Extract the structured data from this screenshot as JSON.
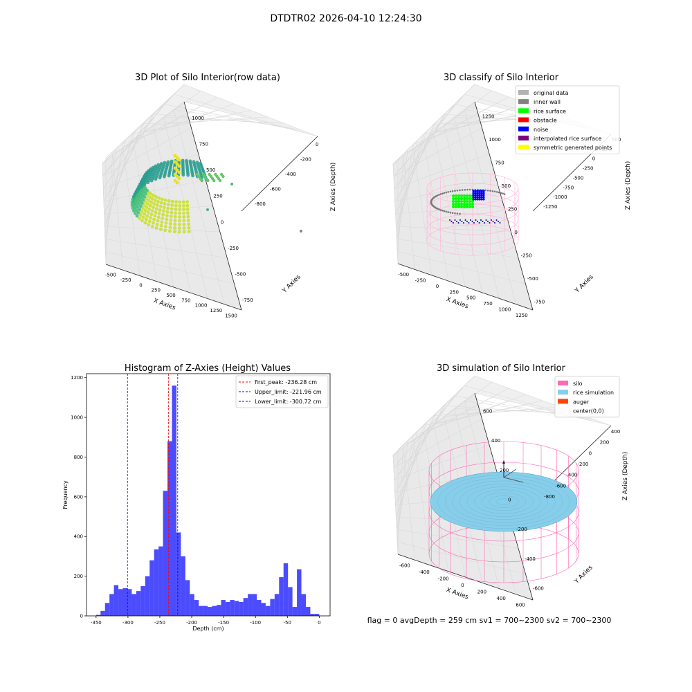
{
  "figure": {
    "suptitle": "DTDTR02 2026-04-10 12:24:30",
    "status_text": "flag = 0     avgDepth = 259 cm  sv1 = 700~2300  sv2 = 700~2300"
  },
  "panels": {
    "raw3d": {
      "title": "3D Plot of Silo Interior(row data)",
      "xlabel": "X Axies",
      "ylabel": "Y Axies",
      "zlabel": "Z Axies (Depth)",
      "xticks": [
        "-500",
        "-250",
        "0",
        "250",
        "500",
        "750",
        "1000",
        "1250",
        "1500"
      ],
      "yticks": [
        "-750",
        "-500",
        "-250",
        "0",
        "250",
        "500",
        "750",
        "1000"
      ],
      "zticks": [
        "0",
        "-200",
        "-400",
        "-600",
        "-800"
      ]
    },
    "classify3d": {
      "title": "3D classify of Silo Interior",
      "xlabel": "X Axies",
      "ylabel": "Y Axies",
      "zlabel": "Z Axies (Depth)",
      "xticks": [
        "-500",
        "-250",
        "0",
        "250",
        "500",
        "750",
        "1000",
        "1250"
      ],
      "yticks": [
        "-750",
        "-500",
        "-250",
        "0",
        "250",
        "500",
        "750",
        "1000",
        "1250"
      ],
      "zticks": [
        "500",
        "250",
        "0",
        "-250",
        "-500",
        "-750",
        "-1000",
        "-1250"
      ],
      "legend": [
        {
          "label": "original data",
          "color": "#b3b3b3"
        },
        {
          "label": "inner wall",
          "color": "#808080"
        },
        {
          "label": "rice surface",
          "color": "#00ff00"
        },
        {
          "label": "obstacle",
          "color": "#ff0000"
        },
        {
          "label": "noise",
          "color": "#0000ff"
        },
        {
          "label": "interpolated rice surface",
          "color": "#800080"
        },
        {
          "label": "symmetric generated points",
          "color": "#ffff00"
        }
      ]
    },
    "simulation3d": {
      "title": "3D simulation of Silo Interior",
      "xlabel": "X Axies",
      "ylabel": "Y Axies",
      "zlabel": "Z Axies (Depth)",
      "xticks": [
        "-600",
        "-400",
        "-200",
        "0",
        "200",
        "400",
        "600"
      ],
      "yticks": [
        "-600",
        "-400",
        "-200",
        "0",
        "200",
        "400",
        "600"
      ],
      "zticks": [
        "400",
        "200",
        "0",
        "-200",
        "-400",
        "-600",
        "-800"
      ],
      "legend": [
        {
          "label": "silo",
          "color": "#ff69b4"
        },
        {
          "label": "rice simulation",
          "color": "#87ceeb"
        },
        {
          "label": "auger",
          "color": "#ff4500"
        },
        {
          "label": "center(0,0)",
          "color": ""
        }
      ]
    }
  },
  "chart_data": {
    "type": "bar",
    "title": "Histogram of Z-Axies (Height) Values",
    "xlabel": "Depth (cm)",
    "ylabel": "Frequency",
    "xlim": [
      -365,
      17
    ],
    "ylim": [
      0,
      1220
    ],
    "xticks": [
      -350,
      -300,
      -250,
      -200,
      -150,
      -100,
      -50,
      0
    ],
    "yticks": [
      0,
      200,
      400,
      600,
      800,
      1000,
      1200
    ],
    "bar_color": "#0000ff",
    "bins_start": -350,
    "bin_width": 7,
    "values": [
      5,
      25,
      65,
      110,
      155,
      135,
      140,
      135,
      110,
      125,
      150,
      200,
      280,
      335,
      350,
      630,
      880,
      1160,
      420,
      300,
      180,
      110,
      80,
      50,
      50,
      45,
      50,
      55,
      80,
      70,
      80,
      75,
      70,
      90,
      110,
      110,
      80,
      65,
      50,
      85,
      110,
      195,
      265,
      145,
      45,
      235,
      110,
      45,
      10,
      10
    ],
    "lines": [
      {
        "label": "first_peak: -236.28 cm",
        "x": -236.28,
        "color": "#ff0000"
      },
      {
        "label": "Upper_limit: -221.96 cm",
        "x": -221.96,
        "color": "#0000ff"
      },
      {
        "label": "Lower_limit: -300.72 cm",
        "x": -300.72,
        "color": "#0000ff"
      }
    ],
    "legend_position": "top-right",
    "grid": false
  }
}
